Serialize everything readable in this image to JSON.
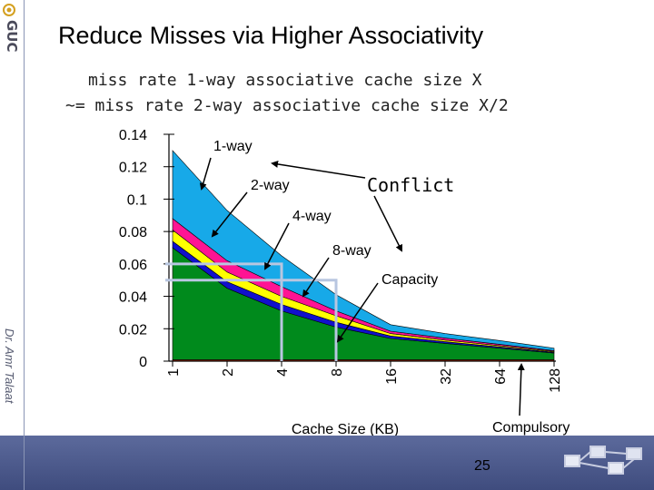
{
  "slide": {
    "title": "Reduce Misses via Higher Associativity",
    "subtitle_line1": "miss rate 1-way associative cache size X",
    "subtitle_line2": "~= miss rate 2-way associative cache size X/2",
    "logo_text": "GUC",
    "author": "Dr. Amr Talaat",
    "page_number": "25"
  },
  "chart_data": {
    "type": "area",
    "xlabel": "Cache Size (KB)",
    "ylabel": "",
    "x": [
      "1",
      "2",
      "4",
      "8",
      "16",
      "32",
      "64",
      "128"
    ],
    "y_ticks": [
      "0",
      "0.02",
      "0.04",
      "0.06",
      "0.08",
      "0.1",
      "0.12",
      "0.14"
    ],
    "ylim": [
      0,
      0.14
    ],
    "stacked": true,
    "series": [
      {
        "name": "Compulsory",
        "color": "#cc3300",
        "values": [
          0.0009,
          0.0009,
          0.0009,
          0.0009,
          0.0009,
          0.0009,
          0.0009,
          0.0009
        ]
      },
      {
        "name": "Capacity",
        "color": "#008a1c",
        "values": [
          0.0691,
          0.0441,
          0.0301,
          0.0201,
          0.0131,
          0.0101,
          0.0071,
          0.0041
        ]
      },
      {
        "name": "8-way",
        "color": "#1111cc",
        "values": [
          0.004,
          0.004,
          0.004,
          0.003,
          0.0015,
          0.001,
          0.0008,
          0.0005
        ]
      },
      {
        "name": "4-way",
        "color": "#ffff00",
        "values": [
          0.007,
          0.006,
          0.005,
          0.004,
          0.0015,
          0.001,
          0.0008,
          0.0005
        ]
      },
      {
        "name": "2-way",
        "color": "#ff1493",
        "values": [
          0.007,
          0.007,
          0.006,
          0.003,
          0.0015,
          0.0012,
          0.0008,
          0.0005
        ]
      },
      {
        "name": "1-way",
        "color": "#17a9e8",
        "values": [
          0.042,
          0.031,
          0.019,
          0.01,
          0.004,
          0.0028,
          0.0023,
          0.0015
        ]
      }
    ],
    "annotations": [
      {
        "label": "1-way",
        "target": "1-way"
      },
      {
        "label": "2-way",
        "target": "2-way"
      },
      {
        "label": "4-way",
        "target": "4-way"
      },
      {
        "label": "8-way",
        "target": "8-way"
      },
      {
        "label": "Conflict",
        "target": "conflict bands"
      },
      {
        "label": "Capacity",
        "target": "Capacity"
      },
      {
        "label": "Compulsory",
        "target": "Compulsory"
      }
    ],
    "guides": [
      {
        "from_x": "4",
        "level_y": 0.06,
        "to_x": "1"
      },
      {
        "from_x": "8",
        "level_y": 0.05,
        "to_x": "1"
      }
    ]
  }
}
